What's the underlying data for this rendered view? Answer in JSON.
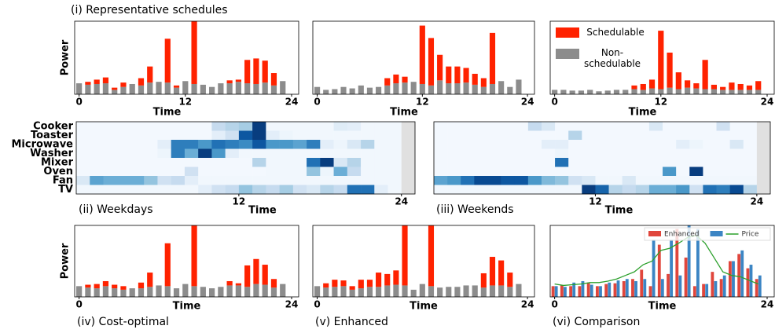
{
  "chart_data": [
    {
      "type": "stacked_bar",
      "title": "(i) Representative schedules",
      "ylabel": "Power",
      "xlabel": "Time",
      "x": [
        0,
        1,
        2,
        3,
        4,
        5,
        6,
        7,
        8,
        9,
        10,
        11,
        12,
        13,
        14,
        15,
        16,
        17,
        18,
        19,
        20,
        21,
        22,
        23
      ],
      "xlim": [
        -0.5,
        24.8
      ],
      "xticks": [
        0,
        12,
        24
      ],
      "ylim": [
        0,
        10
      ],
      "series": [
        {
          "color": "#8c8c8c",
          "values": [
            1.5,
            1.3,
            1.4,
            1.5,
            0.6,
            1.0,
            1.4,
            1.2,
            1.6,
            1.7,
            1.6,
            0.9,
            1.8,
            1.4,
            1.3,
            1.0,
            1.5,
            1.5,
            1.7,
            1.5,
            1.4,
            1.6,
            1.2,
            1.8
          ]
        },
        {
          "color": "#ff2200",
          "values": [
            0,
            0.4,
            0.6,
            0.8,
            0.3,
            0.6,
            0,
            1.0,
            2.2,
            0,
            6.0,
            0.3,
            0,
            8.6,
            0,
            0,
            0,
            0.4,
            0.3,
            3.2,
            3.5,
            3.0,
            1.7,
            0
          ]
        }
      ]
    },
    {
      "type": "stacked_bar",
      "xlabel": "Time",
      "x": [
        0,
        1,
        2,
        3,
        4,
        5,
        6,
        7,
        8,
        9,
        10,
        11,
        12,
        13,
        14,
        15,
        16,
        17,
        18,
        19,
        20,
        21,
        22,
        23
      ],
      "xlim": [
        -0.5,
        24.8
      ],
      "xticks": [
        0,
        12,
        24
      ],
      "ylim": [
        0,
        10
      ],
      "series": [
        {
          "color": "#8c8c8c",
          "values": [
            1.0,
            0.6,
            0.7,
            1.0,
            0.8,
            1.2,
            0.9,
            1.0,
            1.2,
            1.5,
            1.6,
            1.7,
            1.4,
            1.2,
            1.9,
            1.5,
            1.5,
            1.6,
            1.3,
            1.0,
            1.4,
            1.8,
            1.0,
            2.0
          ]
        },
        {
          "color": "#ff2200",
          "values": [
            0,
            0,
            0,
            0,
            0,
            0,
            0,
            0,
            1.0,
            1.2,
            0.8,
            0,
            8.0,
            6.5,
            3.5,
            2.3,
            2.3,
            2.0,
            1.5,
            1.2,
            7.0,
            0,
            0,
            0
          ]
        }
      ]
    },
    {
      "type": "stacked_bar",
      "xlabel": "Time",
      "legend": "upper left",
      "x": [
        0,
        1,
        2,
        3,
        4,
        5,
        6,
        7,
        8,
        9,
        10,
        11,
        12,
        13,
        14,
        15,
        16,
        17,
        18,
        19,
        20,
        21,
        22,
        23
      ],
      "xlim": [
        -0.5,
        24.8
      ],
      "xticks": [
        0,
        12,
        24
      ],
      "ylim": [
        0,
        10
      ],
      "series": [
        {
          "name": "Non-schedulable",
          "color": "#8c8c8c",
          "values": [
            0.6,
            0.6,
            0.5,
            0.5,
            0.6,
            0.4,
            0.5,
            0.6,
            0.6,
            0.7,
            0.6,
            0.8,
            0.7,
            0.9,
            0.7,
            0.9,
            0.8,
            0.7,
            0.7,
            0.6,
            0.6,
            0.6,
            0.6,
            0.6
          ]
        },
        {
          "name": "Schedulable",
          "color": "#ff2200",
          "values": [
            0,
            0,
            0,
            0,
            0,
            0,
            0,
            0,
            0,
            0.5,
            0.8,
            1.2,
            8.0,
            4.8,
            2.3,
            1.0,
            0.7,
            4.0,
            0.6,
            0.4,
            1.0,
            0.8,
            0.6,
            1.2
          ]
        }
      ]
    },
    {
      "type": "heatmap",
      "caption": "(ii) Weekdays",
      "xlabel": "Time",
      "xlim": [
        0,
        25
      ],
      "xticks": [
        12,
        24
      ],
      "rows": [
        "Cooker",
        "Toaster",
        "Microwave",
        "Washer",
        "Mixer",
        "Oven",
        "Fan",
        "TV"
      ],
      "values": [
        [
          0.02,
          0.02,
          0.02,
          0.02,
          0.02,
          0.02,
          0.02,
          0.02,
          0.02,
          0.02,
          0.25,
          0.3,
          0.35,
          0.95,
          0.03,
          0.03,
          0.03,
          0.03,
          0.03,
          0.12,
          0.1,
          0.03,
          0.03,
          0.03,
          null
        ],
        [
          0.02,
          0.02,
          0.02,
          0.02,
          0.02,
          0.02,
          0.02,
          0.02,
          0.02,
          0.02,
          0.1,
          0.2,
          0.85,
          0.95,
          0.1,
          0.05,
          0.03,
          0.03,
          0.03,
          0.03,
          0.03,
          0.03,
          0.03,
          0.03,
          null
        ],
        [
          0.02,
          0.02,
          0.02,
          0.02,
          0.02,
          0.02,
          0.1,
          0.7,
          0.7,
          0.6,
          0.75,
          0.7,
          0.65,
          0.85,
          0.6,
          0.6,
          0.55,
          0.7,
          0.1,
          0.05,
          0.15,
          0.3,
          0.03,
          0.03,
          null
        ],
        [
          0.02,
          0.02,
          0.02,
          0.02,
          0.02,
          0.02,
          0.05,
          0.7,
          0.5,
          0.95,
          0.6,
          0.1,
          0.03,
          0.03,
          0.03,
          0.03,
          0.03,
          0.03,
          0.03,
          0.03,
          0.03,
          0.03,
          0.03,
          0.03,
          null
        ],
        [
          0.02,
          0.02,
          0.02,
          0.02,
          0.02,
          0.02,
          0.02,
          0.02,
          0.02,
          0.02,
          0.02,
          0.02,
          0.02,
          0.3,
          0.03,
          0.03,
          0.03,
          0.75,
          0.95,
          0.15,
          0.3,
          0.03,
          0.03,
          0.03,
          null
        ],
        [
          0.02,
          0.02,
          0.02,
          0.02,
          0.02,
          0.02,
          0.02,
          0.02,
          0.2,
          0.02,
          0.02,
          0.02,
          0.02,
          0.02,
          0.03,
          0.03,
          0.03,
          0.4,
          0.05,
          0.5,
          0.25,
          0.03,
          0.03,
          0.03,
          null
        ],
        [
          0.15,
          0.55,
          0.5,
          0.5,
          0.5,
          0.4,
          0.2,
          0.25,
          0.1,
          0.03,
          0.03,
          0.03,
          0.03,
          0.03,
          0.03,
          0.03,
          0.03,
          0.03,
          0.03,
          0.03,
          0.03,
          0.03,
          0.03,
          0.03,
          null
        ],
        [
          0.03,
          0.03,
          0.03,
          0.03,
          0.03,
          0.03,
          0.03,
          0.03,
          0.03,
          0.1,
          0.2,
          0.25,
          0.4,
          0.3,
          0.25,
          0.35,
          0.2,
          0.15,
          0.3,
          0.25,
          0.75,
          0.75,
          0.1,
          0.03,
          null
        ]
      ]
    },
    {
      "type": "heatmap",
      "caption": "(iii) Weekends",
      "xlabel": "Time",
      "xlim": [
        0,
        25
      ],
      "xticks": [
        12,
        24
      ],
      "values": [
        [
          0.02,
          0.02,
          0.02,
          0.02,
          0.02,
          0.02,
          0.02,
          0.25,
          0.15,
          0.02,
          0.02,
          0.02,
          0.02,
          0.02,
          0.02,
          0.02,
          0.15,
          0.02,
          0.02,
          0.02,
          0.02,
          0.2,
          0.02,
          0.02,
          null
        ],
        [
          0.02,
          0.02,
          0.02,
          0.02,
          0.02,
          0.02,
          0.02,
          0.02,
          0.02,
          0.02,
          0.3,
          0.02,
          0.02,
          0.02,
          0.02,
          0.02,
          0.02,
          0.02,
          0.02,
          0.02,
          0.02,
          0.02,
          0.02,
          0.02,
          null
        ],
        [
          0.02,
          0.02,
          0.02,
          0.02,
          0.02,
          0.02,
          0.02,
          0.02,
          0.1,
          0.1,
          0.02,
          0.02,
          0.02,
          0.02,
          0.02,
          0.02,
          0.02,
          0.02,
          0.1,
          0.05,
          0.02,
          0.02,
          0.15,
          0.02,
          null
        ],
        [
          0.02,
          0.02,
          0.02,
          0.02,
          0.02,
          0.02,
          0.02,
          0.02,
          0.02,
          0.05,
          0.02,
          0.02,
          0.02,
          0.02,
          0.02,
          0.02,
          0.02,
          0.02,
          0.02,
          0.02,
          0.02,
          0.02,
          0.02,
          0.02,
          null
        ],
        [
          0.02,
          0.02,
          0.02,
          0.02,
          0.02,
          0.02,
          0.02,
          0.02,
          0.02,
          0.75,
          0.02,
          0.02,
          0.02,
          0.02,
          0.02,
          0.02,
          0.02,
          0.02,
          0.02,
          0.02,
          0.02,
          0.02,
          0.02,
          0.02,
          null
        ],
        [
          0.02,
          0.02,
          0.02,
          0.02,
          0.02,
          0.02,
          0.02,
          0.02,
          0.02,
          0.02,
          0.02,
          0.02,
          0.02,
          0.02,
          0.02,
          0.02,
          0.02,
          0.6,
          0.02,
          0.95,
          0.02,
          0.02,
          0.02,
          0.02,
          null
        ],
        [
          0.55,
          0.6,
          0.75,
          0.9,
          0.9,
          0.85,
          0.85,
          0.6,
          0.45,
          0.4,
          0.2,
          0.15,
          0.03,
          0.03,
          0.15,
          0.03,
          0.03,
          0.03,
          0.03,
          0.03,
          0.03,
          0.03,
          0.03,
          0.03,
          null
        ],
        [
          0.03,
          0.03,
          0.03,
          0.03,
          0.03,
          0.03,
          0.03,
          0.03,
          0.03,
          0.03,
          0.03,
          0.95,
          0.8,
          0.3,
          0.25,
          0.3,
          0.5,
          0.5,
          0.6,
          0.2,
          0.75,
          0.7,
          0.9,
          0.3,
          null
        ]
      ]
    },
    {
      "type": "stacked_bar",
      "caption": "(iv) Cost-optimal",
      "ylabel": "Power",
      "xlabel": "Time",
      "x": [
        0,
        1,
        2,
        3,
        4,
        5,
        6,
        7,
        8,
        9,
        10,
        11,
        12,
        13,
        14,
        15,
        16,
        17,
        18,
        19,
        20,
        21,
        22,
        23
      ],
      "xlim": [
        -0.5,
        24.8
      ],
      "xticks": [
        0,
        24
      ],
      "ylim": [
        0,
        10
      ],
      "series": [
        {
          "color": "#8c8c8c",
          "values": [
            1.5,
            1.3,
            1.2,
            1.5,
            1.2,
            1.0,
            1.2,
            1.2,
            1.4,
            1.6,
            1.5,
            1.2,
            1.8,
            1.5,
            1.4,
            1.2,
            1.4,
            1.6,
            1.6,
            1.4,
            1.8,
            1.7,
            1.3,
            1.8
          ]
        },
        {
          "color": "#ff2200",
          "values": [
            0,
            0.4,
            0.6,
            0.7,
            0.5,
            0.5,
            0,
            0.8,
            2.0,
            0,
            6.0,
            0,
            0,
            8.6,
            0,
            0,
            0,
            0.6,
            0.3,
            3.0,
            3.5,
            2.8,
            1.2,
            0
          ]
        }
      ]
    },
    {
      "type": "stacked_bar",
      "caption": "(v) Enhanced",
      "xlabel": "Time",
      "x": [
        0,
        1,
        2,
        3,
        4,
        5,
        6,
        7,
        8,
        9,
        10,
        11,
        12,
        13,
        14,
        15,
        16,
        17,
        18,
        19,
        20,
        21,
        22,
        23
      ],
      "xlim": [
        -0.5,
        24.8
      ],
      "xticks": [
        0,
        24
      ],
      "ylim": [
        0,
        10
      ],
      "series": [
        {
          "color": "#8c8c8c",
          "values": [
            1.5,
            1.3,
            1.4,
            1.5,
            1.0,
            1.2,
            1.4,
            1.4,
            1.6,
            1.7,
            1.6,
            1.0,
            1.8,
            1.5,
            1.3,
            1.4,
            1.4,
            1.6,
            1.6,
            1.3,
            1.6,
            1.6,
            1.4,
            1.8
          ]
        },
        {
          "color": "#ff2200",
          "values": [
            0,
            0.6,
            1.0,
            0.8,
            0.5,
            1.2,
            1.0,
            2.0,
            1.6,
            2.0,
            8.6,
            0,
            0,
            8.6,
            0,
            0,
            0,
            0,
            0,
            2.0,
            4.0,
            3.5,
            2.0,
            0
          ]
        }
      ]
    },
    {
      "type": "comparison",
      "caption": "(vi) Comparison",
      "xlabel": "Time",
      "legend": "upper right",
      "x": [
        0,
        1,
        2,
        3,
        4,
        5,
        6,
        7,
        8,
        9,
        10,
        11,
        12,
        13,
        14,
        15,
        16,
        17,
        18,
        19,
        20,
        21,
        22,
        23
      ],
      "xlim": [
        -0.5,
        24.8
      ],
      "xticks": [
        0,
        24
      ],
      "ylim": [
        0,
        10
      ],
      "series": [
        {
          "name": "Enhanced",
          "color": "#e0463c",
          "values": [
            1.5,
            1.6,
            1.5,
            1.5,
            2.0,
            1.5,
            1.8,
            1.9,
            2.2,
            2.5,
            3.8,
            1.5,
            7.3,
            3.2,
            9.5,
            5.5,
            1.5,
            1.8,
            3.5,
            2.5,
            5.0,
            6.0,
            4.0,
            2.5
          ]
        },
        {
          "color": "#3c85c4",
          "values": [
            1.5,
            1.4,
            2.0,
            2.2,
            1.7,
            1.5,
            2.0,
            2.3,
            2.5,
            2.2,
            2.5,
            8.0,
            2.5,
            8.0,
            3.0,
            10,
            9.5,
            1.8,
            2.2,
            3.0,
            5.0,
            6.5,
            4.5,
            3.0
          ]
        },
        {
          "name": "Price",
          "color": "#2ca02c",
          "line": true,
          "values": [
            1.8,
            1.6,
            1.7,
            1.8,
            2.0,
            2.0,
            2.2,
            2.5,
            3.0,
            3.5,
            4.5,
            5.0,
            6.5,
            6.8,
            7.5,
            8.3,
            8.6,
            7.5,
            5.5,
            3.5,
            3.0,
            2.8,
            2.3,
            1.8
          ]
        }
      ]
    }
  ]
}
